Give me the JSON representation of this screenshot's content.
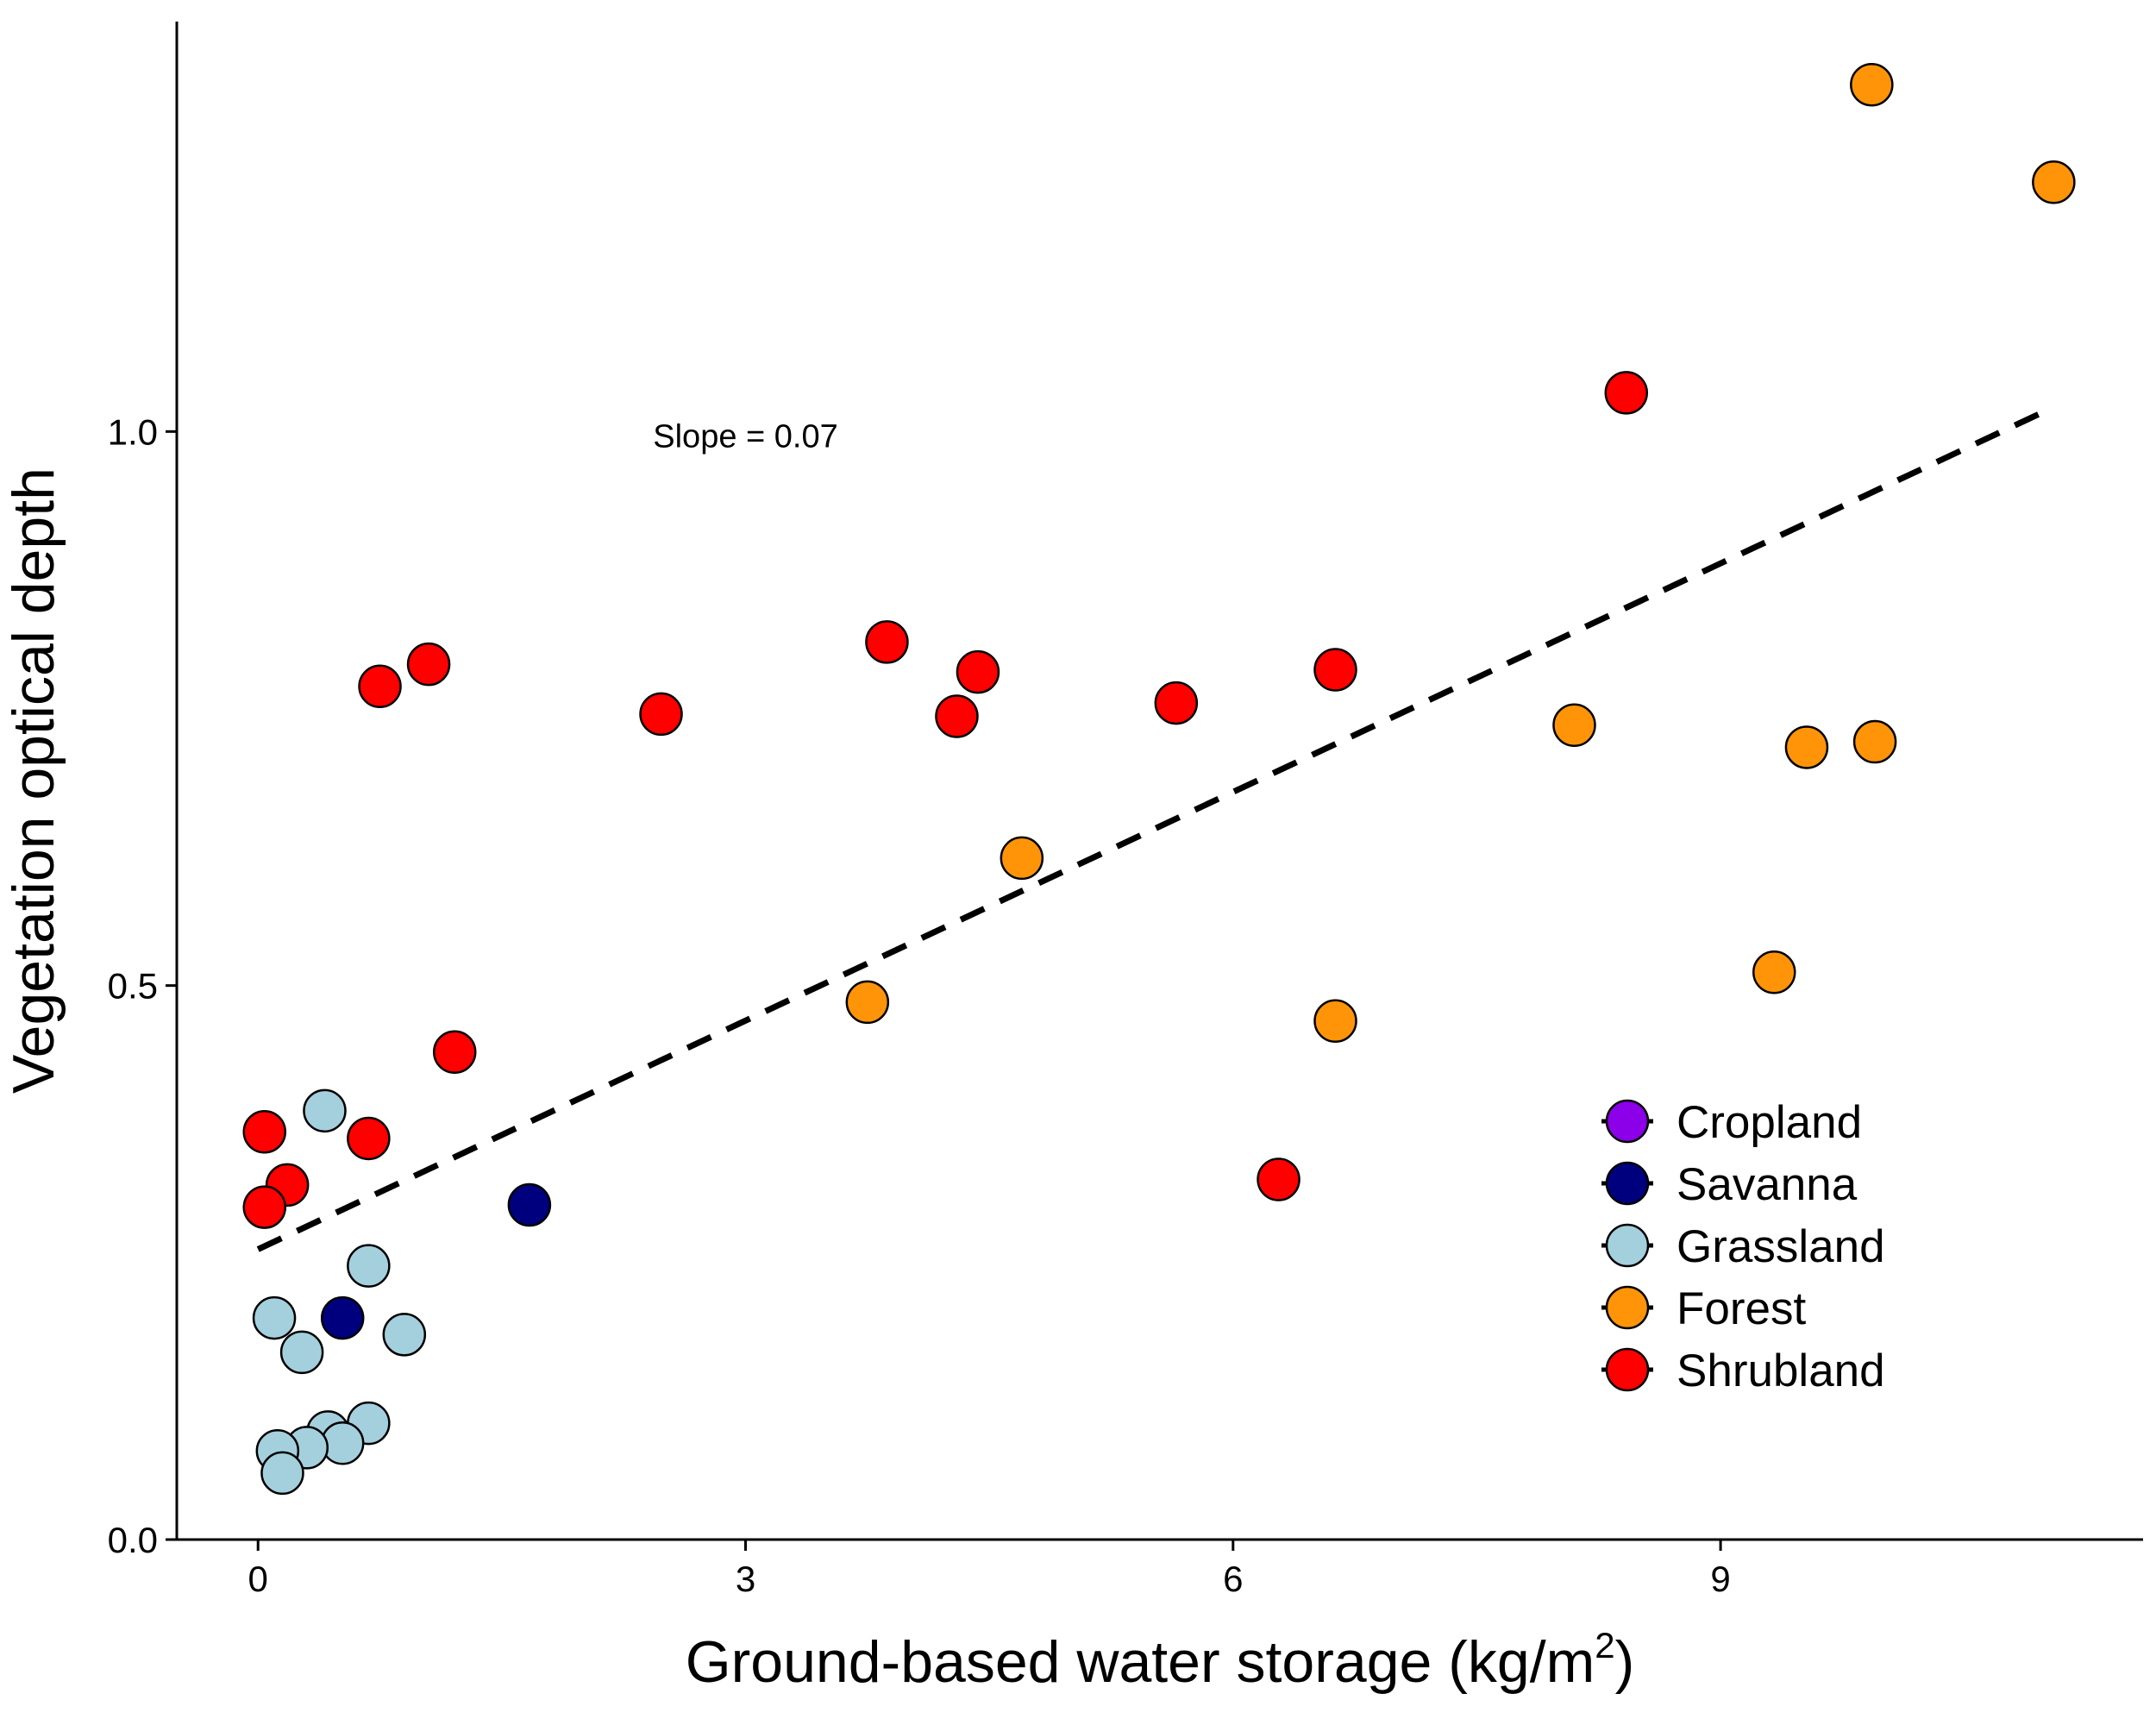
{
  "chart_data": {
    "type": "scatter",
    "title": "",
    "xlabel": "Ground-based water storage (kg/m",
    "xlabel_sup": "2",
    "xlabel_close": ")",
    "ylabel": "Vegetation optical depth",
    "xlim": [
      -0.5,
      11.6
    ],
    "ylim": [
      0,
      1.37
    ],
    "x_ticks": [
      0,
      3,
      6,
      9
    ],
    "x_tick_labels": [
      "0",
      "3",
      "6",
      "9"
    ],
    "y_ticks": [
      0.0,
      0.5,
      1.0
    ],
    "y_tick_labels": [
      "0.0",
      "0.5",
      "1.0"
    ],
    "grid": false,
    "legend_position": "bottom-right",
    "annotation": {
      "text": "Slope = 0.07",
      "x": 3.0,
      "y": 0.996
    },
    "trend_line": {
      "style": "dashed",
      "color": "#000000",
      "x": [
        0.0,
        11.05
      ],
      "y": [
        0.262,
        1.022
      ]
    },
    "series": [
      {
        "name": "Cropland",
        "color": "#8B00E8",
        "points": []
      },
      {
        "name": "Savanna",
        "color": "#00007F",
        "points": [
          [
            1.67,
            0.302
          ],
          [
            0.52,
            0.2
          ]
        ]
      },
      {
        "name": "Grassland",
        "color": "#A4D0DE",
        "points": [
          [
            0.41,
            0.387
          ],
          [
            0.68,
            0.247
          ],
          [
            0.1,
            0.2
          ],
          [
            0.27,
            0.169
          ],
          [
            0.9,
            0.185
          ],
          [
            0.68,
            0.105
          ],
          [
            0.43,
            0.097
          ],
          [
            0.52,
            0.087
          ],
          [
            0.3,
            0.083
          ],
          [
            0.12,
            0.08
          ],
          [
            0.15,
            0.06
          ]
        ]
      },
      {
        "name": "Forest",
        "color": "#FF9408",
        "points": [
          [
            9.93,
            1.313
          ],
          [
            11.05,
            1.225
          ],
          [
            8.1,
            0.735
          ],
          [
            9.53,
            0.715
          ],
          [
            9.95,
            0.72
          ],
          [
            4.7,
            0.615
          ],
          [
            3.75,
            0.485
          ],
          [
            6.63,
            0.468
          ],
          [
            9.33,
            0.512
          ]
        ]
      },
      {
        "name": "Shrubland",
        "color": "#FF0000",
        "points": [
          [
            8.42,
            1.035
          ],
          [
            3.87,
            0.81
          ],
          [
            4.43,
            0.783
          ],
          [
            6.63,
            0.785
          ],
          [
            5.65,
            0.755
          ],
          [
            4.3,
            0.743
          ],
          [
            2.48,
            0.745
          ],
          [
            1.05,
            0.79
          ],
          [
            0.75,
            0.77
          ],
          [
            1.21,
            0.44
          ],
          [
            0.04,
            0.368
          ],
          [
            0.68,
            0.362
          ],
          [
            0.18,
            0.32
          ],
          [
            0.04,
            0.3
          ],
          [
            6.28,
            0.325
          ]
        ]
      }
    ]
  }
}
